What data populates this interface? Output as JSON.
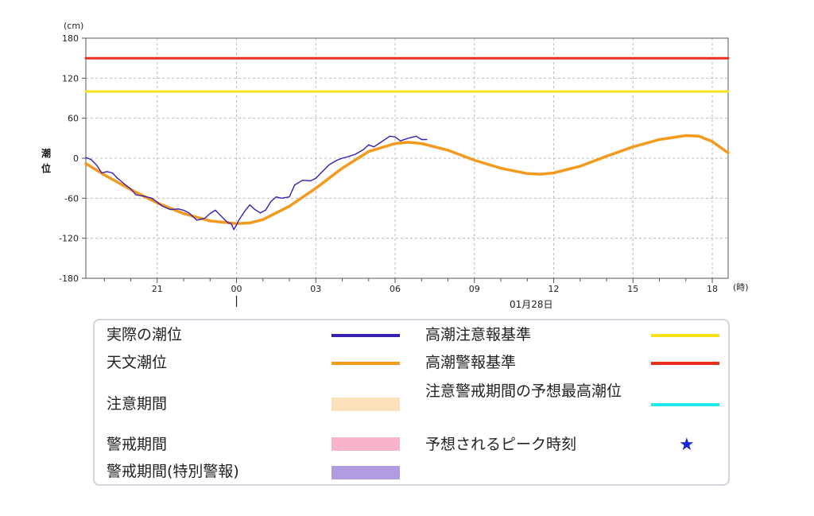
{
  "chart_data": {
    "type": "line",
    "y_unit": "(cm)",
    "x_unit": "(時)",
    "ylabel": "潮位",
    "ylim": [
      -180,
      180
    ],
    "y_ticks": [
      180,
      120,
      60,
      0,
      -60,
      -120,
      -180
    ],
    "x_range_hours": [
      -5.7,
      18.6
    ],
    "x_ticks": [
      {
        "hour": -3,
        "label": "21"
      },
      {
        "hour": 0,
        "label": "00"
      },
      {
        "hour": 3,
        "label": "03"
      },
      {
        "hour": 6,
        "label": "06"
      },
      {
        "hour": 9,
        "label": "09"
      },
      {
        "hour": 12,
        "label": "12"
      },
      {
        "hour": 15,
        "label": "15"
      },
      {
        "hour": 18,
        "label": "18"
      }
    ],
    "date_label": "01月28日",
    "series": [
      {
        "name": "実際の潮位",
        "color": "#3a1fb0",
        "x": [
          -5.7,
          -5.5,
          -5.3,
          -5.1,
          -4.9,
          -4.7,
          -4.5,
          -4.2,
          -4.0,
          -3.8,
          -3.5,
          -3.2,
          -3.0,
          -2.8,
          -2.5,
          -2.2,
          -2.0,
          -1.8,
          -1.5,
          -1.2,
          -1.0,
          -0.8,
          -0.6,
          -0.4,
          -0.3,
          -0.2,
          -0.1,
          0.0,
          0.1,
          0.3,
          0.5,
          0.7,
          0.9,
          1.1,
          1.3,
          1.5,
          1.7,
          2.0,
          2.2,
          2.5,
          2.8,
          3.0,
          3.2,
          3.5,
          3.8,
          4.0,
          4.2,
          4.5,
          4.8,
          5.0,
          5.2,
          5.5,
          5.8,
          6.0,
          6.2,
          6.5,
          6.8,
          7.0,
          7.2
        ],
        "y": [
          1,
          -2,
          -10,
          -22,
          -20,
          -22,
          -30,
          -40,
          -46,
          -55,
          -57,
          -60,
          -66,
          -72,
          -77,
          -76,
          -78,
          -82,
          -93,
          -90,
          -83,
          -78,
          -86,
          -94,
          -97,
          -98,
          -107,
          -100,
          -92,
          -80,
          -70,
          -77,
          -82,
          -78,
          -65,
          -58,
          -60,
          -58,
          -40,
          -33,
          -34,
          -30,
          -22,
          -10,
          -3,
          0,
          2,
          6,
          13,
          20,
          17,
          25,
          33,
          32,
          26,
          30,
          33,
          28,
          28
        ]
      },
      {
        "name": "天文潮位",
        "color": "#f39a1c",
        "x": [
          -5.7,
          -5.0,
          -4.0,
          -3.0,
          -2.0,
          -1.0,
          0.0,
          0.5,
          1.0,
          2.0,
          3.0,
          4.0,
          5.0,
          6.0,
          6.5,
          7.0,
          8.0,
          9.0,
          10.0,
          11.0,
          11.5,
          12.0,
          13.0,
          14.0,
          15.0,
          16.0,
          17.0,
          17.5,
          18.0,
          18.6
        ],
        "y": [
          -8,
          -25,
          -47,
          -67,
          -83,
          -94,
          -98,
          -97,
          -92,
          -72,
          -45,
          -15,
          10,
          22,
          24,
          22,
          12,
          -3,
          -15,
          -23,
          -24,
          -22,
          -12,
          3,
          17,
          28,
          34,
          33,
          25,
          8
        ]
      },
      {
        "name": "高潮注意報基準",
        "color": "#f4e31c",
        "x": [
          -5.7,
          18.6
        ],
        "y": [
          100,
          100
        ]
      },
      {
        "name": "高潮警報基準",
        "color": "#e9301c",
        "x": [
          -5.7,
          18.6
        ],
        "y": [
          150,
          150
        ]
      }
    ]
  },
  "legend": {
    "items": [
      {
        "label": "実際の潮位",
        "kind": "line",
        "color": "#3a1fb0"
      },
      {
        "label": "天文潮位",
        "kind": "line",
        "color": "#f39a1c"
      },
      {
        "label": "注意期間",
        "kind": "band",
        "color": "#fde0bc"
      },
      {
        "label": "警戒期間",
        "kind": "band",
        "color": "#f9b4cd"
      },
      {
        "label": "警戒期間(特別警報)",
        "kind": "band",
        "color": "#b29ce1"
      },
      {
        "label": "高潮注意報基準",
        "kind": "line",
        "color": "#f4e31c"
      },
      {
        "label": "高潮警報基準",
        "kind": "line",
        "color": "#e9301c"
      },
      {
        "label": "注意警戒期間の予想最高潮位",
        "kind": "line",
        "color": "#1fe9ee"
      },
      {
        "label": "予想されるピーク時刻",
        "kind": "star",
        "color": "#1a24d6",
        "symbol": "★"
      }
    ]
  }
}
